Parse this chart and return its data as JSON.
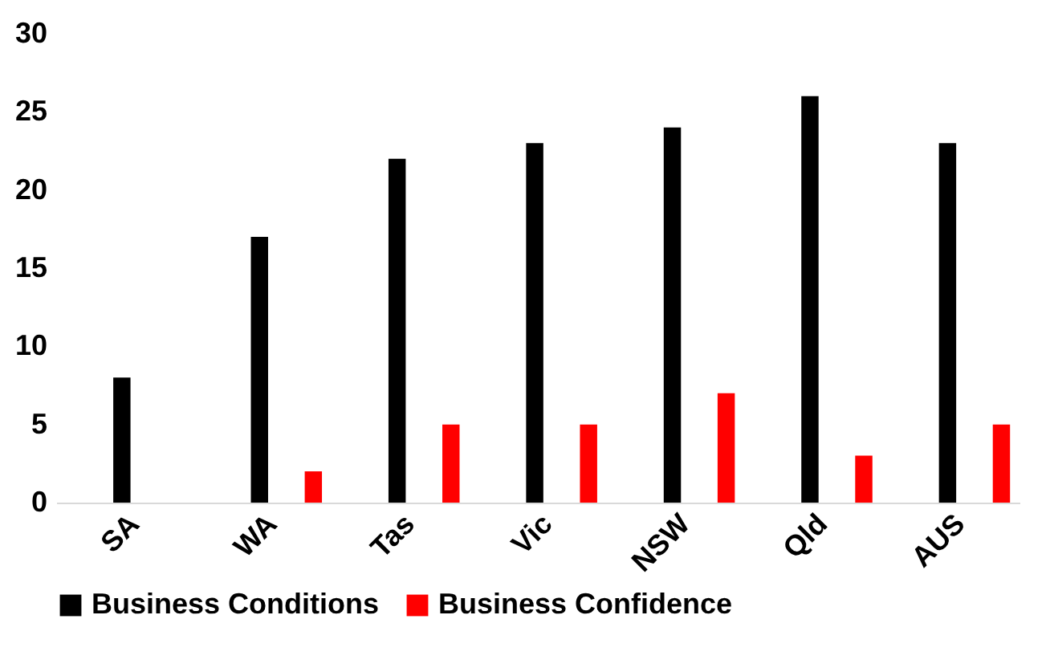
{
  "chart_data": {
    "type": "bar",
    "categories": [
      "SA",
      "WA",
      "Tas",
      "Vic",
      "NSW",
      "Qld",
      "AUS"
    ],
    "series": [
      {
        "name": "Business Conditions",
        "color": "#000000",
        "values": [
          8,
          17,
          22,
          23,
          24,
          26,
          23
        ]
      },
      {
        "name": "Business Confidence",
        "color": "#ff0000",
        "values": [
          0,
          2,
          5,
          5,
          7,
          3,
          5
        ]
      }
    ],
    "ylim": [
      0,
      30
    ],
    "yticks": [
      0,
      5,
      10,
      15,
      20,
      25,
      30
    ],
    "grid": false,
    "legend": "bottom"
  }
}
